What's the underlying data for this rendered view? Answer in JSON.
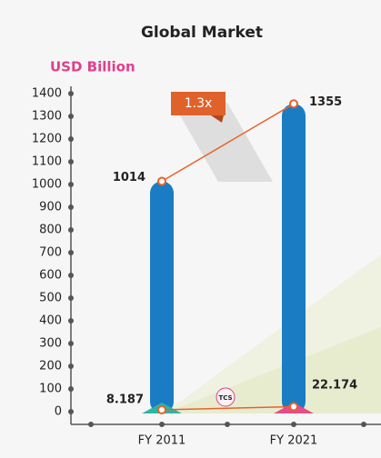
{
  "chart_data": {
    "type": "bar",
    "title": "Global Market",
    "y_label": "USD Billion",
    "categories": [
      "FY 2011",
      "FY 2021"
    ],
    "series": [
      {
        "values": [
          1014,
          1355
        ],
        "color": "#1a7dc4",
        "line_color": "#e8622a",
        "foot_colors": [
          "#2bb5a5",
          "#e84a8a"
        ]
      },
      {
        "name": "TCS",
        "values": [
          8.187,
          22.174
        ],
        "color": "#e8622a"
      }
    ],
    "annotations": [
      {
        "text": "1.3x",
        "color": "#e0622a"
      }
    ],
    "ylim": [
      0,
      1400
    ],
    "yticks": [
      0,
      100,
      200,
      300,
      400,
      500,
      600,
      700,
      800,
      900,
      1000,
      1100,
      1200,
      1300,
      1400
    ]
  }
}
